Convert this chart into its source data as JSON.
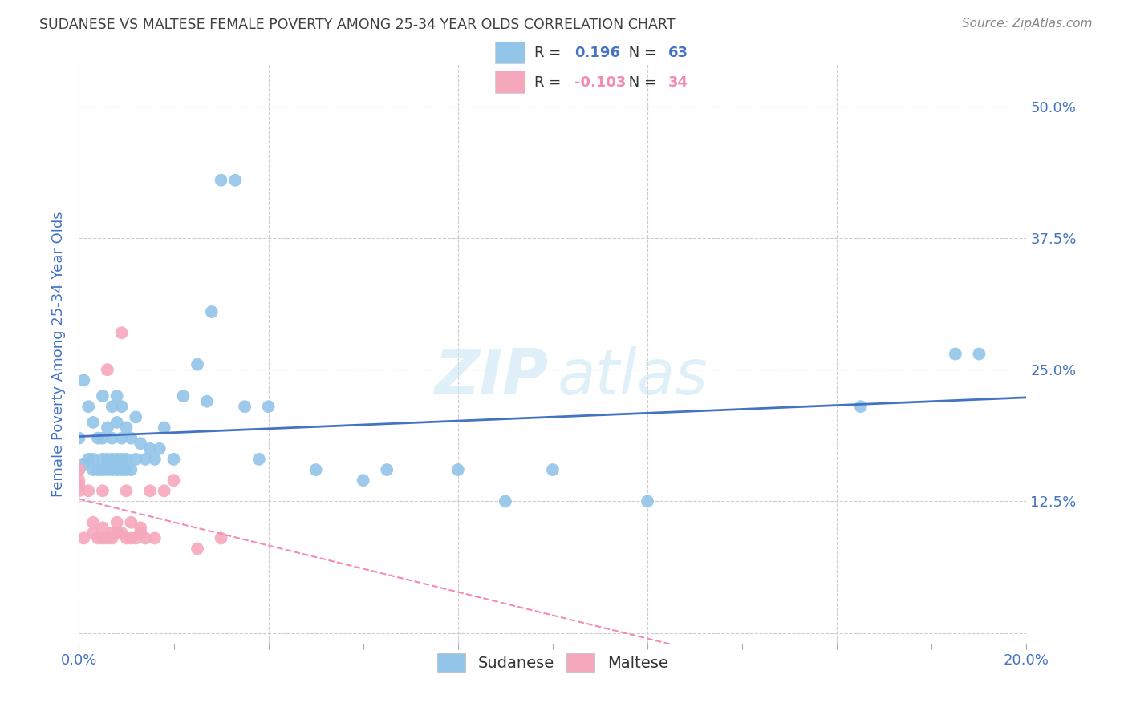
{
  "title": "SUDANESE VS MALTESE FEMALE POVERTY AMONG 25-34 YEAR OLDS CORRELATION CHART",
  "source": "Source: ZipAtlas.com",
  "ylabel": "Female Poverty Among 25-34 Year Olds",
  "xlim": [
    0.0,
    0.2
  ],
  "ylim": [
    -0.01,
    0.54
  ],
  "ytick_positions": [
    0.0,
    0.125,
    0.25,
    0.375,
    0.5
  ],
  "ytick_labels": [
    "",
    "12.5%",
    "25.0%",
    "37.5%",
    "50.0%"
  ],
  "xtick_positions": [
    0.0,
    0.02,
    0.04,
    0.06,
    0.08,
    0.1,
    0.12,
    0.14,
    0.16,
    0.18,
    0.2
  ],
  "xtick_labels": [
    "0.0%",
    "",
    "",
    "",
    "",
    "",
    "",
    "",
    "",
    "",
    "20.0%"
  ],
  "sudanese_color": "#92C5E8",
  "maltese_color": "#F5A8BB",
  "sudanese_line_color": "#4472C4",
  "maltese_line_color": "#F48CB0",
  "background_color": "#FFFFFF",
  "grid_color": "#CCCCCC",
  "title_color": "#404040",
  "axis_label_color": "#4472C4",
  "tick_label_color": "#4472C4",
  "sudanese_x": [
    0.0,
    0.0,
    0.001,
    0.001,
    0.002,
    0.002,
    0.003,
    0.003,
    0.003,
    0.004,
    0.004,
    0.005,
    0.005,
    0.005,
    0.005,
    0.006,
    0.006,
    0.006,
    0.007,
    0.007,
    0.007,
    0.007,
    0.008,
    0.008,
    0.008,
    0.008,
    0.009,
    0.009,
    0.009,
    0.009,
    0.01,
    0.01,
    0.01,
    0.011,
    0.011,
    0.012,
    0.012,
    0.013,
    0.014,
    0.015,
    0.016,
    0.017,
    0.018,
    0.02,
    0.022,
    0.025,
    0.027,
    0.028,
    0.03,
    0.033,
    0.035,
    0.038,
    0.04,
    0.05,
    0.06,
    0.065,
    0.08,
    0.09,
    0.1,
    0.12,
    0.165,
    0.185,
    0.19
  ],
  "sudanese_y": [
    0.155,
    0.185,
    0.16,
    0.24,
    0.165,
    0.215,
    0.155,
    0.165,
    0.2,
    0.155,
    0.185,
    0.155,
    0.165,
    0.185,
    0.225,
    0.155,
    0.165,
    0.195,
    0.155,
    0.165,
    0.185,
    0.215,
    0.155,
    0.165,
    0.2,
    0.225,
    0.155,
    0.165,
    0.185,
    0.215,
    0.155,
    0.165,
    0.195,
    0.155,
    0.185,
    0.165,
    0.205,
    0.18,
    0.165,
    0.175,
    0.165,
    0.175,
    0.195,
    0.165,
    0.225,
    0.255,
    0.22,
    0.305,
    0.43,
    0.43,
    0.215,
    0.165,
    0.215,
    0.155,
    0.145,
    0.155,
    0.155,
    0.125,
    0.155,
    0.125,
    0.215,
    0.265,
    0.265
  ],
  "maltese_x": [
    0.0,
    0.0,
    0.0,
    0.0,
    0.001,
    0.002,
    0.003,
    0.003,
    0.004,
    0.005,
    0.005,
    0.005,
    0.006,
    0.006,
    0.007,
    0.007,
    0.008,
    0.008,
    0.009,
    0.009,
    0.01,
    0.01,
    0.011,
    0.011,
    0.012,
    0.013,
    0.013,
    0.014,
    0.015,
    0.016,
    0.018,
    0.02,
    0.025,
    0.03
  ],
  "maltese_y": [
    0.135,
    0.14,
    0.145,
    0.155,
    0.09,
    0.135,
    0.095,
    0.105,
    0.09,
    0.09,
    0.1,
    0.135,
    0.09,
    0.25,
    0.09,
    0.095,
    0.095,
    0.105,
    0.095,
    0.285,
    0.09,
    0.135,
    0.09,
    0.105,
    0.09,
    0.095,
    0.1,
    0.09,
    0.135,
    0.09,
    0.135,
    0.145,
    0.08,
    0.09
  ],
  "legend_border_color": "#DDDDDD",
  "sudanese_R_text": "0.196",
  "sudanese_N_text": "63",
  "maltese_R_text": "-0.103",
  "maltese_N_text": "34",
  "grid_xticks": [
    0.0,
    0.04,
    0.08,
    0.12,
    0.16,
    0.2
  ]
}
